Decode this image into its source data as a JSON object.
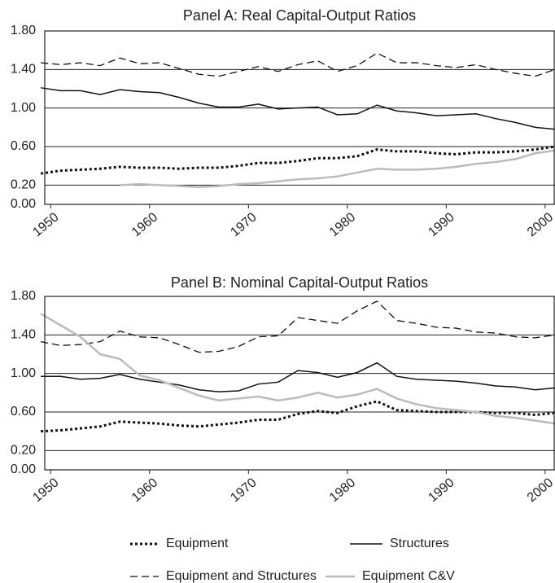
{
  "chart_data": [
    {
      "type": "line",
      "title": "Panel A: Real Capital-Output Ratios",
      "x": [
        1949,
        1951,
        1953,
        1955,
        1957,
        1959,
        1961,
        1963,
        1965,
        1967,
        1969,
        1971,
        1973,
        1975,
        1977,
        1979,
        1981,
        1983,
        1985,
        1987,
        1989,
        1991,
        1993,
        1995,
        1997,
        1999,
        2001
      ],
      "xlim": [
        1949.4,
        2001
      ],
      "xticks": [
        1950,
        1960,
        1970,
        1980,
        1990,
        2000
      ],
      "ylim": [
        0,
        1.8
      ],
      "yticks": [
        {
          "value": 0,
          "label": "0.00"
        },
        {
          "value": 0.2,
          "label": "0.20"
        },
        {
          "value": 0.6,
          "label": "0.60"
        },
        {
          "value": 1,
          "label": "1.00"
        },
        {
          "value": 1.4,
          "label": "1.40"
        },
        {
          "value": 1.8,
          "label": "1.80"
        }
      ],
      "grid": true,
      "series": [
        {
          "name": "Equipment",
          "color": "#111111",
          "dash": "dotted",
          "values": [
            0.32,
            0.35,
            0.36,
            0.37,
            0.39,
            0.38,
            0.38,
            0.37,
            0.38,
            0.38,
            0.4,
            0.43,
            0.43,
            0.45,
            0.48,
            0.48,
            0.5,
            0.57,
            0.55,
            0.55,
            0.53,
            0.52,
            0.54,
            0.54,
            0.55,
            0.57,
            0.6
          ]
        },
        {
          "name": "Structures",
          "color": "#111111",
          "dash": "solid",
          "values": [
            1.21,
            1.18,
            1.18,
            1.14,
            1.19,
            1.17,
            1.16,
            1.11,
            1.05,
            1.01,
            1.01,
            1.04,
            0.99,
            1.0,
            1.01,
            0.93,
            0.94,
            1.03,
            0.97,
            0.95,
            0.92,
            0.93,
            0.94,
            0.89,
            0.85,
            0.8,
            0.78
          ]
        },
        {
          "name": "Equipment and Structures",
          "color": "#111111",
          "dash": "dashed",
          "values": [
            1.47,
            1.45,
            1.47,
            1.44,
            1.52,
            1.46,
            1.47,
            1.41,
            1.35,
            1.33,
            1.38,
            1.43,
            1.38,
            1.45,
            1.49,
            1.38,
            1.44,
            1.57,
            1.47,
            1.47,
            1.44,
            1.42,
            1.45,
            1.4,
            1.36,
            1.33,
            1.4
          ]
        },
        {
          "name": "Equipment C&V",
          "color": "#bbbbbb",
          "dash": "wide",
          "values": [
            null,
            null,
            null,
            null,
            0.2,
            0.21,
            0.2,
            0.19,
            0.18,
            0.19,
            0.21,
            0.22,
            0.24,
            0.26,
            0.27,
            0.29,
            0.33,
            0.37,
            0.36,
            0.36,
            0.37,
            0.39,
            0.42,
            0.44,
            0.47,
            0.53,
            0.56
          ]
        }
      ]
    },
    {
      "type": "line",
      "title": "Panel B: Nominal Capital-Output Ratios",
      "x": [
        1949,
        1951,
        1953,
        1955,
        1957,
        1959,
        1961,
        1963,
        1965,
        1967,
        1969,
        1971,
        1973,
        1975,
        1977,
        1979,
        1981,
        1983,
        1985,
        1987,
        1989,
        1991,
        1993,
        1995,
        1997,
        1999,
        2001
      ],
      "xlim": [
        1949.4,
        2001
      ],
      "xticks": [
        1950,
        1960,
        1970,
        1980,
        1990,
        2000
      ],
      "ylim": [
        0,
        1.8
      ],
      "yticks": [
        {
          "value": 0,
          "label": "0.00"
        },
        {
          "value": 0.2,
          "label": "0.20"
        },
        {
          "value": 0.6,
          "label": "0.60"
        },
        {
          "value": 1,
          "label": "1.00"
        },
        {
          "value": 1.4,
          "label": "1.40"
        },
        {
          "value": 1.8,
          "label": "1.80"
        }
      ],
      "grid": true,
      "series": [
        {
          "name": "Equipment",
          "color": "#111111",
          "dash": "dotted",
          "values": [
            0.4,
            0.41,
            0.43,
            0.45,
            0.5,
            0.49,
            0.48,
            0.46,
            0.45,
            0.47,
            0.49,
            0.52,
            0.52,
            0.58,
            0.61,
            0.59,
            0.66,
            0.71,
            0.62,
            0.61,
            0.6,
            0.6,
            0.6,
            0.59,
            0.59,
            0.57,
            0.59
          ]
        },
        {
          "name": "Structures",
          "color": "#111111",
          "dash": "solid",
          "values": [
            0.97,
            0.97,
            0.94,
            0.95,
            0.99,
            0.94,
            0.91,
            0.88,
            0.83,
            0.81,
            0.82,
            0.89,
            0.91,
            1.03,
            1.01,
            0.96,
            1.01,
            1.11,
            0.97,
            0.94,
            0.93,
            0.92,
            0.9,
            0.87,
            0.86,
            0.83,
            0.85
          ]
        },
        {
          "name": "Equipment and Structures",
          "color": "#111111",
          "dash": "dashed",
          "values": [
            1.33,
            1.29,
            1.3,
            1.33,
            1.44,
            1.38,
            1.37,
            1.3,
            1.22,
            1.23,
            1.28,
            1.38,
            1.39,
            1.58,
            1.55,
            1.52,
            1.65,
            1.75,
            1.55,
            1.52,
            1.48,
            1.47,
            1.43,
            1.42,
            1.38,
            1.37,
            1.4
          ]
        },
        {
          "name": "Equipment C&V",
          "color": "#bbbbbb",
          "dash": "wide",
          "values": [
            1.62,
            1.5,
            1.38,
            1.2,
            1.15,
            0.98,
            0.93,
            0.85,
            0.77,
            0.72,
            0.74,
            0.76,
            0.72,
            0.75,
            0.8,
            0.75,
            0.78,
            0.84,
            0.74,
            0.68,
            0.64,
            0.62,
            0.6,
            0.56,
            0.54,
            0.51,
            0.48
          ]
        }
      ]
    }
  ]
}
